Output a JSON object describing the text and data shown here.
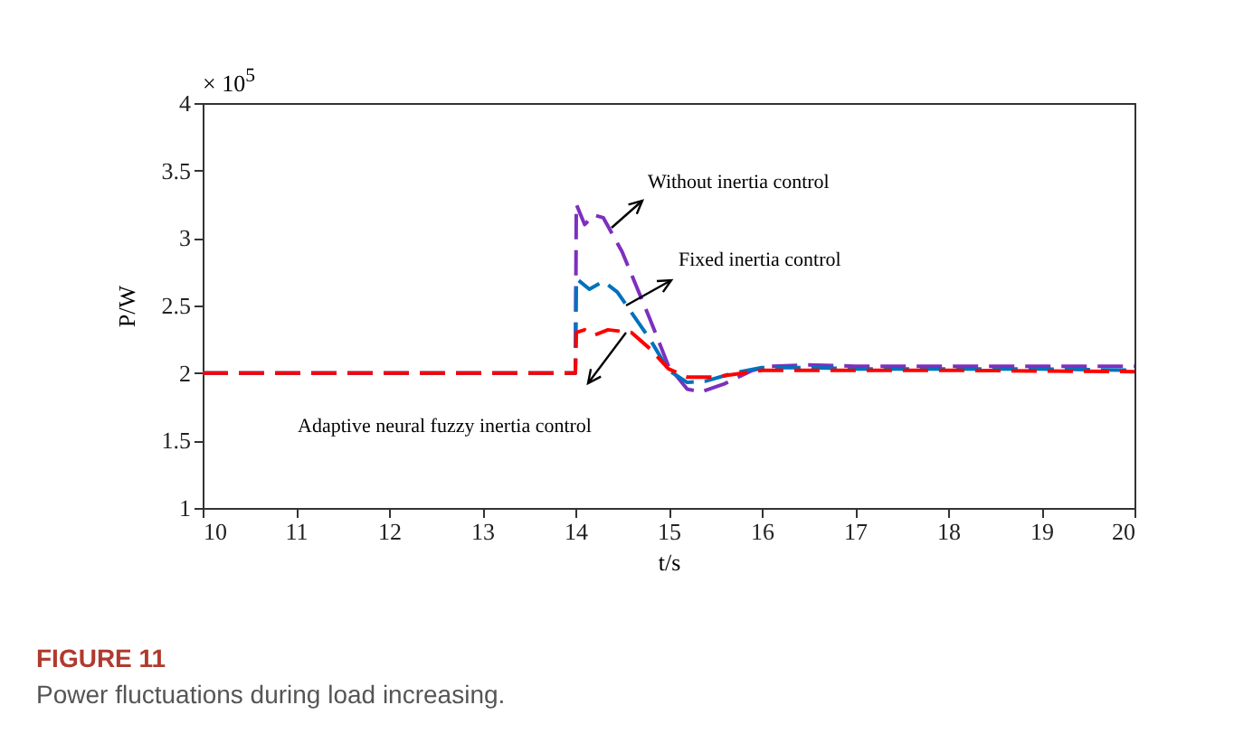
{
  "chart_data": {
    "type": "line",
    "title": "FIGURE 11",
    "subtitle": "Power fluctuations during load increasing.",
    "xlabel": "t/s",
    "ylabel": "P/W",
    "xlim": [
      10,
      20
    ],
    "xticks": [
      10,
      11,
      12,
      13,
      14,
      15,
      16,
      17,
      18,
      19,
      20
    ],
    "ylim": [
      1,
      4
    ],
    "yticks": [
      1,
      1.5,
      2,
      2.5,
      3,
      3.5,
      4
    ],
    "grid": false,
    "marker": "none",
    "line_style": "dashed",
    "series": [
      {
        "color": "#7e2fbe",
        "x": [
          10,
          14,
          14.01,
          14.1,
          14.2,
          14.3,
          14.5,
          14.8,
          15,
          15.2,
          15.35,
          15.6,
          15.9,
          16.1,
          16.5,
          17,
          18,
          19,
          20
        ],
        "values": [
          2,
          2,
          3.25,
          3.1,
          3.17,
          3.15,
          2.9,
          2.4,
          2.05,
          1.88,
          1.86,
          1.92,
          2.02,
          2.05,
          2.06,
          2.05,
          2.05,
          2.05,
          2.05
        ]
      },
      {
        "color": "#0072bd",
        "x": [
          10,
          14,
          14.01,
          14.15,
          14.3,
          14.45,
          14.6,
          14.8,
          15,
          15.2,
          15.4,
          15.7,
          16,
          16.5,
          17,
          18,
          19,
          20
        ],
        "values": [
          2,
          2,
          2.7,
          2.62,
          2.68,
          2.6,
          2.45,
          2.25,
          2.02,
          1.93,
          1.94,
          2,
          2.04,
          2.04,
          2.03,
          2.03,
          2.03,
          2.02
        ]
      },
      {
        "color": "#ff0000",
        "x": [
          10,
          14,
          14.01,
          14.1,
          14.2,
          14.35,
          14.6,
          14.8,
          15,
          15.2,
          15.5,
          15.8,
          16,
          16.5,
          17,
          18,
          20
        ],
        "values": [
          2,
          2,
          2.3,
          2.32,
          2.28,
          2.32,
          2.3,
          2.18,
          2.03,
          1.97,
          1.97,
          2,
          2.02,
          2.02,
          2.02,
          2.02,
          2.01
        ]
      }
    ],
    "annotations": [
      "× 10$^{5}$",
      "Without inertia control",
      "Fixed inertia control",
      "Adaptive neural fuzzy inertia control"
    ]
  }
}
